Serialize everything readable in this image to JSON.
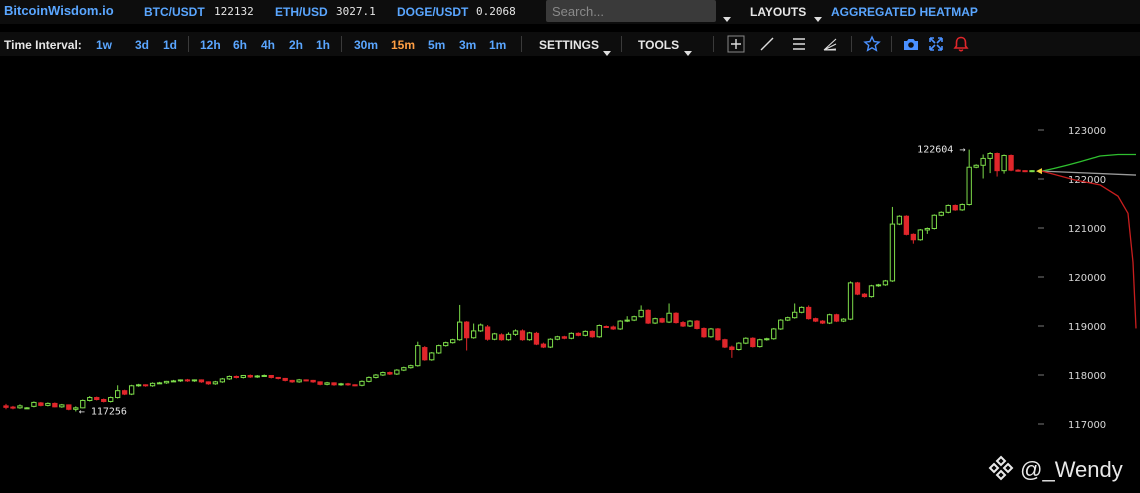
{
  "header": {
    "logo": "BitcoinWisdom.io",
    "tickers": [
      {
        "symbol": "BTC/USDT",
        "price": "122132"
      },
      {
        "symbol": "ETH/USD",
        "price": "3027.1"
      },
      {
        "symbol": "DOGE/USDT",
        "price": "0.2068"
      }
    ],
    "search_placeholder": "Search...",
    "layouts_label": "LAYOUTS",
    "heatmap_label": "AGGREGATED HEATMAP"
  },
  "toolbar": {
    "interval_label": "Time Interval:",
    "intervals": [
      "1w",
      "3d",
      "1d",
      "12h",
      "6h",
      "4h",
      "2h",
      "1h",
      "30m",
      "15m",
      "5m",
      "3m",
      "1m"
    ],
    "active_interval": "15m",
    "settings_label": "SETTINGS",
    "tools_label": "TOOLS",
    "tool_icons": [
      "crosshair-icon",
      "trendline-icon",
      "horizontal-lines-icon",
      "fan-icon",
      "star-icon",
      "camera-icon",
      "fullscreen-icon",
      "alert-bell-icon"
    ]
  },
  "chart_data": {
    "type": "candlestick",
    "y_ticks": [
      123000,
      122000,
      121000,
      120000,
      119000,
      118000,
      117000
    ],
    "ylim": [
      116600,
      123400
    ],
    "high_label": "122604",
    "low_label": "117256",
    "high_value": 122604,
    "low_value": 117256,
    "colors": {
      "up": "#7ddc4a",
      "down": "#e0262b",
      "axis_text": "#d8d8d8",
      "bid": "#2fbf2f",
      "ask": "#c81e1e",
      "mid": "#9a9a9a"
    },
    "candles": [
      [
        117370,
        117340,
        117300,
        117410
      ],
      [
        117345,
        117330,
        117300,
        117370
      ],
      [
        117330,
        117370,
        117310,
        117400
      ],
      [
        117330,
        117330,
        117310,
        117345
      ],
      [
        117360,
        117440,
        117340,
        117460
      ],
      [
        117430,
        117380,
        117360,
        117450
      ],
      [
        117380,
        117420,
        117360,
        117440
      ],
      [
        117420,
        117350,
        117340,
        117440
      ],
      [
        117350,
        117390,
        117330,
        117410
      ],
      [
        117390,
        117300,
        117280,
        117400
      ],
      [
        117300,
        117330,
        117256,
        117360
      ],
      [
        117330,
        117480,
        117320,
        117500
      ],
      [
        117480,
        117540,
        117460,
        117570
      ],
      [
        117540,
        117500,
        117480,
        117560
      ],
      [
        117500,
        117460,
        117440,
        117520
      ],
      [
        117460,
        117540,
        117440,
        117560
      ],
      [
        117540,
        117680,
        117520,
        117790
      ],
      [
        117680,
        117610,
        117590,
        117700
      ],
      [
        117610,
        117780,
        117590,
        117800
      ],
      [
        117780,
        117800,
        117760,
        117820
      ],
      [
        117800,
        117780,
        117760,
        117810
      ],
      [
        117780,
        117830,
        117760,
        117850
      ],
      [
        117830,
        117840,
        117820,
        117860
      ],
      [
        117840,
        117870,
        117820,
        117880
      ],
      [
        117870,
        117880,
        117860,
        117900
      ],
      [
        117880,
        117900,
        117860,
        117910
      ],
      [
        117900,
        117880,
        117860,
        117920
      ],
      [
        117880,
        117900,
        117860,
        117910
      ],
      [
        117900,
        117860,
        117840,
        117910
      ],
      [
        117860,
        117820,
        117800,
        117870
      ],
      [
        117820,
        117860,
        117800,
        117880
      ],
      [
        117860,
        117920,
        117840,
        117940
      ],
      [
        117920,
        117970,
        117900,
        117990
      ],
      [
        117970,
        117950,
        117930,
        117990
      ],
      [
        117950,
        117990,
        117930,
        118000
      ],
      [
        117990,
        117960,
        117940,
        118010
      ],
      [
        117960,
        117980,
        117940,
        118000
      ],
      [
        117980,
        117990,
        117960,
        118010
      ],
      [
        117990,
        117950,
        117930,
        118000
      ],
      [
        117950,
        117930,
        117910,
        117960
      ],
      [
        117930,
        117890,
        117870,
        117940
      ],
      [
        117890,
        117860,
        117840,
        117900
      ],
      [
        117860,
        117900,
        117840,
        117920
      ],
      [
        117900,
        117890,
        117870,
        117910
      ],
      [
        117890,
        117860,
        117840,
        117900
      ],
      [
        117860,
        117810,
        117790,
        117870
      ],
      [
        117810,
        117840,
        117790,
        117860
      ],
      [
        117840,
        117800,
        117780,
        117850
      ],
      [
        117800,
        117820,
        117780,
        117840
      ],
      [
        117820,
        117800,
        117780,
        117840
      ],
      [
        117800,
        117790,
        117770,
        117810
      ],
      [
        117790,
        117870,
        117770,
        117890
      ],
      [
        117870,
        117950,
        117850,
        117970
      ],
      [
        117950,
        118000,
        117930,
        118020
      ],
      [
        118000,
        118050,
        117980,
        118070
      ],
      [
        118050,
        118020,
        118000,
        118070
      ],
      [
        118020,
        118100,
        118000,
        118120
      ],
      [
        118100,
        118150,
        118080,
        118170
      ],
      [
        118150,
        118190,
        118130,
        118210
      ],
      [
        118190,
        118600,
        118170,
        118680
      ],
      [
        118560,
        118310,
        118290,
        118590
      ],
      [
        118310,
        118450,
        118290,
        118470
      ],
      [
        118450,
        118600,
        118430,
        118620
      ],
      [
        118600,
        118660,
        118580,
        118680
      ],
      [
        118660,
        118720,
        118640,
        118740
      ],
      [
        118720,
        119080,
        118700,
        119430
      ],
      [
        119080,
        118760,
        118500,
        119100
      ],
      [
        118760,
        118900,
        118740,
        119050
      ],
      [
        118900,
        119020,
        118880,
        119050
      ],
      [
        118980,
        118730,
        118700,
        119020
      ],
      [
        118730,
        118840,
        118710,
        118860
      ],
      [
        118820,
        118720,
        118700,
        118850
      ],
      [
        118720,
        118830,
        118700,
        118870
      ],
      [
        118830,
        118900,
        118800,
        118930
      ],
      [
        118900,
        118720,
        118700,
        118930
      ],
      [
        118720,
        118860,
        118700,
        118880
      ],
      [
        118850,
        118630,
        118610,
        118880
      ],
      [
        118630,
        118570,
        118550,
        118660
      ],
      [
        118570,
        118730,
        118550,
        118750
      ],
      [
        118730,
        118780,
        118710,
        118800
      ],
      [
        118780,
        118750,
        118730,
        118800
      ],
      [
        118750,
        118850,
        118730,
        118870
      ],
      [
        118850,
        118810,
        118790,
        118870
      ],
      [
        118810,
        118890,
        118790,
        118910
      ],
      [
        118890,
        118780,
        118760,
        118910
      ],
      [
        118780,
        119010,
        118760,
        119030
      ],
      [
        118990,
        118980,
        118960,
        119010
      ],
      [
        118980,
        118940,
        118920,
        119010
      ],
      [
        118940,
        119100,
        118920,
        119120
      ],
      [
        119100,
        119120,
        119080,
        119200
      ],
      [
        119120,
        119190,
        119100,
        119210
      ],
      [
        119190,
        119320,
        119170,
        119420
      ],
      [
        119320,
        119060,
        119040,
        119340
      ],
      [
        119060,
        119150,
        119040,
        119170
      ],
      [
        119150,
        119080,
        119060,
        119170
      ],
      [
        119080,
        119260,
        119060,
        119460
      ],
      [
        119260,
        119070,
        119050,
        119280
      ],
      [
        119070,
        119000,
        118980,
        119100
      ],
      [
        119000,
        119100,
        118980,
        119120
      ],
      [
        119100,
        118950,
        118930,
        119120
      ],
      [
        118950,
        118780,
        118760,
        118970
      ],
      [
        118780,
        118940,
        118760,
        118960
      ],
      [
        118940,
        118720,
        118700,
        118960
      ],
      [
        118720,
        118570,
        118550,
        118740
      ],
      [
        118570,
        118520,
        118350,
        118600
      ],
      [
        118520,
        118650,
        118500,
        118670
      ],
      [
        118650,
        118750,
        118630,
        118770
      ],
      [
        118750,
        118580,
        118560,
        118770
      ],
      [
        118580,
        118720,
        118560,
        118740
      ],
      [
        118720,
        118740,
        118700,
        118760
      ],
      [
        118740,
        118940,
        118720,
        118960
      ],
      [
        118940,
        119120,
        118920,
        119140
      ],
      [
        119120,
        119170,
        119100,
        119190
      ],
      [
        119170,
        119280,
        119150,
        119460
      ],
      [
        119280,
        119380,
        119260,
        119400
      ],
      [
        119380,
        119150,
        119130,
        119420
      ],
      [
        119150,
        119100,
        119080,
        119170
      ],
      [
        119100,
        119060,
        119040,
        119120
      ],
      [
        119060,
        119230,
        119040,
        119250
      ],
      [
        119230,
        119100,
        119080,
        119250
      ],
      [
        119100,
        119140,
        119080,
        119160
      ],
      [
        119140,
        119880,
        119120,
        119910
      ],
      [
        119880,
        119650,
        119630,
        119900
      ],
      [
        119650,
        119600,
        119580,
        119670
      ],
      [
        119600,
        119820,
        119580,
        119840
      ],
      [
        119820,
        119840,
        119800,
        119860
      ],
      [
        119840,
        119920,
        119820,
        119940
      ],
      [
        119920,
        121080,
        119900,
        121430
      ],
      [
        121080,
        121240,
        121060,
        121260
      ],
      [
        121240,
        120870,
        120850,
        121260
      ],
      [
        120870,
        120760,
        120680,
        120890
      ],
      [
        120760,
        120960,
        120740,
        120980
      ],
      [
        120960,
        120990,
        120880,
        121010
      ],
      [
        120990,
        121260,
        120970,
        121280
      ],
      [
        121260,
        121320,
        121240,
        121340
      ],
      [
        121320,
        121460,
        121300,
        121480
      ],
      [
        121460,
        121370,
        121350,
        121480
      ],
      [
        121370,
        121480,
        121350,
        121500
      ],
      [
        121480,
        122240,
        121460,
        122600
      ],
      [
        122240,
        122280,
        122220,
        122300
      ],
      [
        122280,
        122420,
        122010,
        122500
      ],
      [
        122420,
        122520,
        122120,
        122550
      ],
      [
        122520,
        122170,
        122050,
        122540
      ],
      [
        122170,
        122480,
        122110,
        122500
      ],
      [
        122480,
        122180,
        122160,
        122500
      ],
      [
        122180,
        122170,
        122150,
        122200
      ],
      [
        122170,
        122160,
        122140,
        122180
      ],
      [
        122160,
        122170,
        122140,
        122180
      ]
    ]
  },
  "watermark": "@_Wendy"
}
